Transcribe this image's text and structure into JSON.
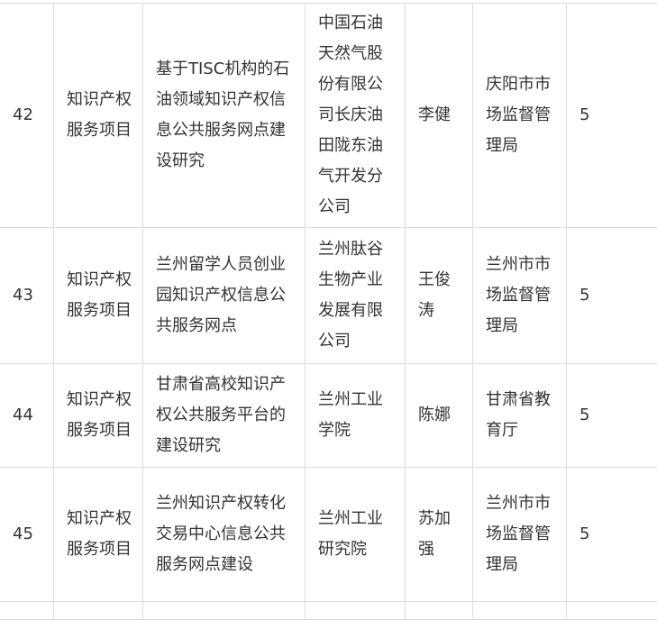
{
  "rows": [
    {
      "no": "42",
      "category": "知识产权服务项目",
      "project": "基于TISC机构的石油领域知识产权信息公共服务网点建设研究",
      "org": "中国石油天然气股份有限公司长庆油田陇东油气开发分公司",
      "leader": "李健",
      "dept": "庆阳市市场监督管理局",
      "amount": "5"
    },
    {
      "no": "43",
      "category": "知识产权服务项目",
      "project": "兰州留学人员创业园知识产权信息公共服务网点",
      "org": "兰州肽谷生物产业发展有限公司",
      "leader": "王俊涛",
      "dept": "兰州市市场监督管理局",
      "amount": "5"
    },
    {
      "no": "44",
      "category": "知识产权服务项目",
      "project": "甘肃省高校知识产权公共服务平台的建设研究",
      "org": "兰州工业学院",
      "leader": "陈娜",
      "dept": "甘肃省教育厅",
      "amount": "5"
    },
    {
      "no": "45",
      "category": "知识产权服务项目",
      "project": "兰州知识产权转化交易中心信息公共服务网点建设",
      "org": "兰州工业研究院",
      "leader": "苏加强",
      "dept": "兰州市市场监督管理局",
      "amount": "5"
    }
  ]
}
